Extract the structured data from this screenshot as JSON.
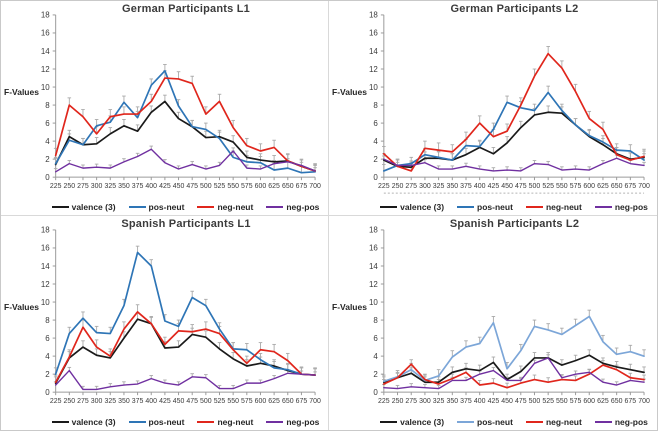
{
  "figure": {
    "ylabel": "F-Values",
    "colors": {
      "valence": "#1a1a1a",
      "pos_neut": "#2e75b6",
      "pos_neut_light": "#7ca6d8",
      "neg_neut": "#e0261c",
      "neg_pos": "#7030a0",
      "error_bar": "#a9a9a9",
      "axis": "#9b9b9b",
      "tick_text": "#3a3a3a",
      "title_text": "#3b3b3b"
    }
  },
  "chart_data": [
    {
      "type": "line",
      "title": "German Participants L1",
      "xlabel": "",
      "ylabel": "F-Values",
      "x": [
        225,
        250,
        275,
        300,
        325,
        350,
        375,
        400,
        425,
        450,
        475,
        500,
        525,
        550,
        575,
        600,
        625,
        650,
        675,
        700
      ],
      "ylim": [
        0,
        18
      ],
      "ytick_step": 2,
      "grid": false,
      "legend_position": "bottom",
      "error_bars": "upper",
      "dotted_underline": false,
      "series": [
        {
          "name": "valence (3)",
          "color": "#1a1a1a",
          "err": 0.7,
          "values": [
            1.4,
            4.5,
            3.6,
            3.7,
            4.8,
            5.7,
            5.1,
            7.2,
            8.4,
            6.5,
            5.6,
            4.4,
            4.5,
            3.9,
            2.2,
            1.9,
            1.7,
            1.8,
            1.2,
            0.7
          ]
        },
        {
          "name": "pos-neut",
          "color": "#2e75b6",
          "err": 0.7,
          "values": [
            1.5,
            4.1,
            3.6,
            5.7,
            6.1,
            8.3,
            6.6,
            10.2,
            11.8,
            7.9,
            5.6,
            5.3,
            4.3,
            2.2,
            1.7,
            1.6,
            0.8,
            1.0,
            0.5,
            0.6
          ]
        },
        {
          "name": "neg-neut",
          "color": "#e0261c",
          "err": 0.8,
          "values": [
            2.4,
            8.0,
            6.7,
            4.8,
            6.7,
            7.0,
            7.0,
            8.4,
            11.0,
            10.9,
            10.4,
            7.0,
            8.4,
            5.5,
            3.5,
            2.9,
            3.3,
            1.8,
            1.2,
            0.7
          ]
        },
        {
          "name": "neg-pos",
          "color": "#7030a0",
          "err": 0.35,
          "values": [
            0.6,
            1.5,
            1.0,
            1.1,
            1.0,
            1.7,
            2.3,
            3.1,
            1.6,
            0.9,
            1.4,
            0.9,
            1.3,
            2.9,
            1.0,
            0.9,
            1.5,
            1.7,
            1.3,
            0.7
          ]
        }
      ]
    },
    {
      "type": "line",
      "title": "German Participants L2",
      "xlabel": "",
      "ylabel": "F-Values",
      "x": [
        225,
        250,
        275,
        300,
        325,
        350,
        375,
        400,
        425,
        450,
        475,
        500,
        525,
        550,
        575,
        600,
        625,
        650,
        675,
        700
      ],
      "ylim": [
        0,
        18
      ],
      "ytick_step": 2,
      "grid": false,
      "legend_position": "bottom",
      "error_bars": "upper",
      "dotted_underline": true,
      "series": [
        {
          "name": "valence (3)",
          "color": "#1a1a1a",
          "err": 0.7,
          "values": [
            1.9,
            1.2,
            1.1,
            2.1,
            2.1,
            1.9,
            2.5,
            3.3,
            2.6,
            3.8,
            5.5,
            6.9,
            7.2,
            7.1,
            5.8,
            4.5,
            3.6,
            2.6,
            2.0,
            2.2
          ]
        },
        {
          "name": "pos-neut",
          "color": "#2e75b6",
          "err": 0.7,
          "values": [
            0.7,
            1.3,
            1.5,
            2.5,
            2.2,
            1.9,
            3.5,
            3.4,
            5.3,
            8.3,
            7.7,
            7.4,
            9.4,
            7.4,
            5.8,
            4.6,
            3.9,
            3.0,
            2.9,
            1.9
          ]
        },
        {
          "name": "neg-neut",
          "color": "#e0261c",
          "err": 0.8,
          "values": [
            2.6,
            1.2,
            0.7,
            3.2,
            3.0,
            2.8,
            4.2,
            6.0,
            4.5,
            5.1,
            8.0,
            11.2,
            13.7,
            12.1,
            9.5,
            6.5,
            5.3,
            2.5,
            1.9,
            2.3
          ]
        },
        {
          "name": "neg-pos",
          "color": "#7030a0",
          "err": 0.35,
          "values": [
            2.0,
            1.3,
            1.3,
            1.6,
            0.9,
            0.9,
            1.2,
            0.9,
            0.7,
            0.8,
            0.7,
            1.5,
            1.4,
            0.8,
            0.9,
            0.8,
            1.5,
            2.1,
            1.5,
            1.3
          ]
        }
      ]
    },
    {
      "type": "line",
      "title": "Spanish Participants L1",
      "xlabel": "",
      "ylabel": "F-Values",
      "x": [
        225,
        250,
        275,
        300,
        325,
        350,
        375,
        400,
        425,
        450,
        475,
        500,
        525,
        550,
        575,
        600,
        625,
        650,
        675,
        700
      ],
      "ylim": [
        0,
        18
      ],
      "ytick_step": 2,
      "grid": false,
      "legend_position": "bottom",
      "error_bars": "upper",
      "dotted_underline": false,
      "series": [
        {
          "name": "valence (3)",
          "color": "#1a1a1a",
          "err": 0.7,
          "values": [
            1.0,
            3.8,
            5.0,
            4.1,
            3.8,
            6.0,
            8.1,
            7.6,
            4.9,
            5.0,
            6.4,
            6.1,
            4.8,
            3.7,
            2.9,
            3.2,
            2.9,
            2.4,
            2.0,
            1.9
          ]
        },
        {
          "name": "pos-neut",
          "color": "#2e75b6",
          "err": 0.7,
          "values": [
            2.0,
            6.5,
            8.2,
            6.6,
            6.5,
            9.6,
            15.5,
            14.0,
            7.9,
            7.3,
            10.5,
            9.6,
            7.0,
            4.8,
            4.7,
            3.6,
            2.7,
            2.5,
            2.0,
            1.9
          ]
        },
        {
          "name": "neg-neut",
          "color": "#e0261c",
          "err": 0.8,
          "values": [
            1.1,
            3.9,
            7.2,
            5.0,
            4.0,
            7.0,
            8.9,
            7.6,
            5.3,
            6.8,
            6.7,
            7.0,
            6.5,
            4.7,
            3.2,
            4.7,
            4.5,
            3.5,
            2.0,
            1.9
          ]
        },
        {
          "name": "neg-pos",
          "color": "#7030a0",
          "err": 0.35,
          "values": [
            0.8,
            2.4,
            0.3,
            0.3,
            0.6,
            0.8,
            0.9,
            1.5,
            1.0,
            0.8,
            1.7,
            1.6,
            0.4,
            0.4,
            1.0,
            1.0,
            1.5,
            2.1,
            2.0,
            1.9
          ]
        }
      ]
    },
    {
      "type": "line",
      "title": "Spanish Participants L2",
      "xlabel": "",
      "ylabel": "F-Values",
      "x": [
        225,
        250,
        275,
        300,
        325,
        350,
        375,
        400,
        425,
        450,
        475,
        500,
        525,
        550,
        575,
        600,
        625,
        650,
        675,
        700
      ],
      "ylim": [
        0,
        18
      ],
      "ytick_step": 2,
      "grid": false,
      "legend_position": "bottom",
      "error_bars": "upper",
      "dotted_underline": false,
      "series": [
        {
          "name": "valence (3)",
          "color": "#1a1a1a",
          "err": 0.6,
          "values": [
            1.1,
            1.6,
            2.1,
            1.1,
            1.1,
            2.2,
            2.6,
            2.4,
            3.3,
            1.4,
            2.3,
            3.8,
            3.8,
            3.0,
            3.5,
            4.1,
            3.2,
            2.8,
            2.5,
            2.2
          ]
        },
        {
          "name": "pos-neut",
          "color": "#7ca6d8",
          "err": 0.7,
          "values": [
            1.2,
            1.7,
            2.5,
            1.3,
            1.8,
            3.9,
            5.0,
            5.4,
            7.7,
            2.6,
            4.6,
            7.3,
            6.9,
            6.4,
            7.4,
            8.4,
            5.6,
            4.2,
            4.5,
            4.0
          ]
        },
        {
          "name": "neg-neut",
          "color": "#e0261c",
          "err": 0.5,
          "values": [
            0.9,
            1.6,
            3.1,
            1.4,
            0.9,
            1.5,
            2.2,
            0.8,
            1.0,
            0.5,
            1.0,
            1.4,
            1.1,
            1.4,
            1.3,
            2.0,
            3.0,
            2.5,
            1.6,
            1.4
          ]
        },
        {
          "name": "neg-pos",
          "color": "#7030a0",
          "err": 0.35,
          "values": [
            0.5,
            0.4,
            0.6,
            0.5,
            0.4,
            1.3,
            1.3,
            2.0,
            2.4,
            1.3,
            1.3,
            3.2,
            3.8,
            1.6,
            2.0,
            2.2,
            1.1,
            0.8,
            1.3,
            1.1
          ]
        }
      ]
    }
  ]
}
